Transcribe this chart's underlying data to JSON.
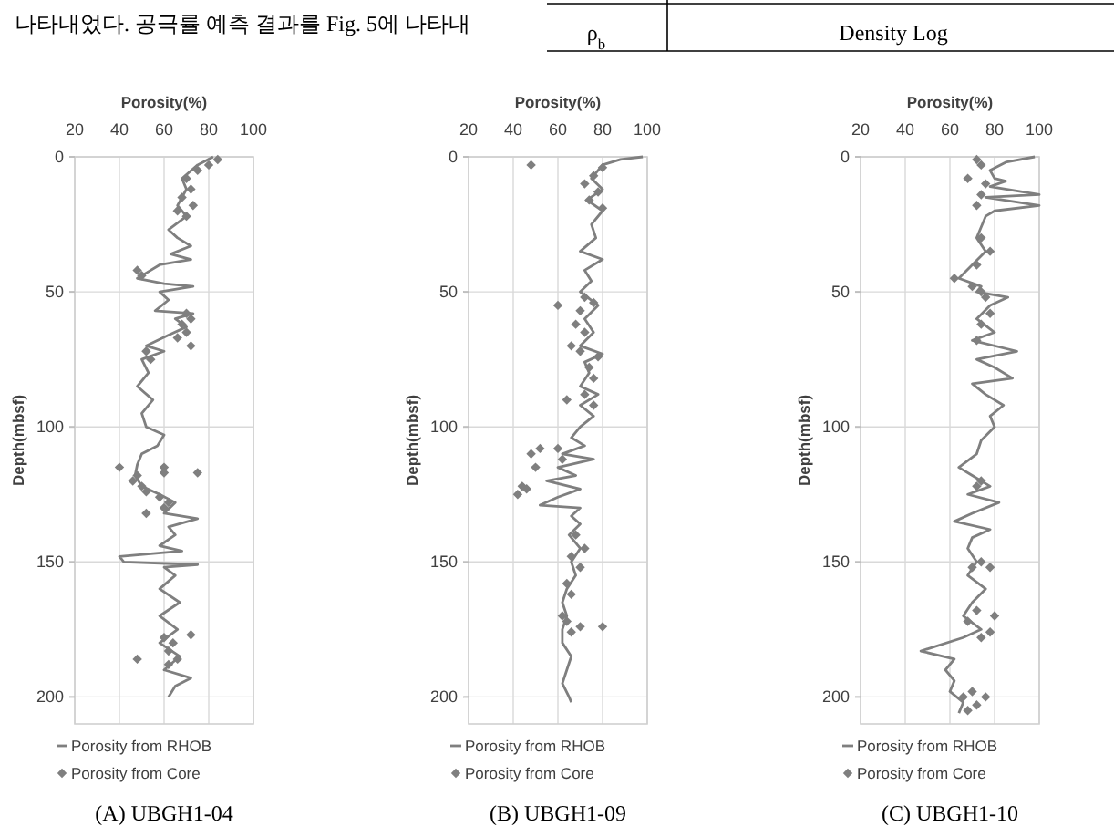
{
  "chart_data": [
    {
      "type": "line",
      "title": "(A)  UBGH1-04",
      "xlabel": "Porosity(%)",
      "ylabel": "Depth(mbsf)",
      "xlim": [
        20,
        100
      ],
      "xticks": [
        20,
        40,
        60,
        80,
        100
      ],
      "ylim": [
        210,
        0
      ],
      "yticks": [
        0,
        50,
        100,
        150,
        200
      ],
      "grid": true,
      "legend": "bottom",
      "annotations": [
        "나타내었다. 공극률 예측 결과를 Fig. 5에 나타내",
        "ρ$_{b}$",
        "Density  Log"
      ],
      "series": [
        {
          "name": "Porosity from RHOB",
          "type": "line",
          "color": "#7f7f7f",
          "marker": "none",
          "x": [
            82,
            75,
            68,
            70,
            66,
            70,
            62,
            66,
            72,
            63,
            72,
            58,
            52,
            48,
            60,
            73,
            58,
            62,
            56,
            73,
            65,
            70,
            62,
            52,
            60,
            50,
            53,
            48,
            55,
            50,
            52,
            60,
            57,
            50,
            48,
            47,
            50,
            58,
            65,
            60,
            75,
            62,
            65,
            58,
            68,
            40,
            42,
            75,
            60,
            65,
            58,
            67,
            58,
            66,
            58,
            67,
            60,
            72,
            65,
            62
          ],
          "values": [
            0,
            3,
            8,
            12,
            18,
            22,
            27,
            30,
            33,
            36,
            38,
            40,
            43,
            45,
            47,
            48,
            50,
            53,
            57,
            58,
            60,
            63,
            66,
            70,
            72,
            75,
            80,
            85,
            90,
            95,
            100,
            103,
            107,
            110,
            114,
            118,
            122,
            125,
            128,
            132,
            134,
            137,
            140,
            144,
            146,
            148,
            150,
            151,
            152,
            155,
            160,
            165,
            170,
            175,
            180,
            185,
            190,
            193,
            196,
            200
          ]
        },
        {
          "name": "Porosity from Core",
          "type": "scatter",
          "color": "#7f7f7f",
          "marker": "diamond",
          "x": [
            84,
            80,
            75,
            70,
            72,
            68,
            73,
            66,
            70,
            50,
            48,
            70,
            72,
            68,
            70,
            66,
            72,
            52,
            54,
            40,
            60,
            60,
            75,
            48,
            46,
            50,
            52,
            58,
            62,
            60,
            52,
            72,
            60,
            64,
            62,
            66,
            48,
            62
          ],
          "values": [
            1,
            3,
            5,
            8,
            12,
            15,
            18,
            20,
            22,
            44,
            42,
            58,
            60,
            62,
            65,
            67,
            70,
            72,
            75,
            115,
            115,
            117,
            117,
            118,
            120,
            122,
            124,
            126,
            128,
            130,
            132,
            177,
            178,
            180,
            183,
            186,
            186,
            188
          ]
        }
      ]
    },
    {
      "type": "line",
      "title": "(B)  UBGH1-09",
      "xlabel": "Porosity(%)",
      "ylabel": "Depth(mbsf)",
      "xlim": [
        20,
        100
      ],
      "xticks": [
        20,
        40,
        60,
        80,
        100
      ],
      "ylim": [
        210,
        0
      ],
      "yticks": [
        0,
        50,
        100,
        150,
        200
      ],
      "grid": true,
      "legend": "bottom",
      "series": [
        {
          "name": "Porosity from RHOB",
          "type": "line",
          "color": "#7f7f7f",
          "marker": "none",
          "x": [
            98,
            88,
            80,
            75,
            80,
            73,
            80,
            75,
            77,
            70,
            80,
            72,
            75,
            70,
            78,
            72,
            76,
            70,
            80,
            72,
            74,
            70,
            78,
            70,
            76,
            70,
            66,
            72,
            62,
            76,
            60,
            68,
            55,
            70,
            60,
            52,
            70,
            66,
            70,
            65,
            70,
            66,
            68,
            64,
            62,
            64,
            62,
            62,
            66,
            64,
            62,
            65,
            66
          ],
          "values": [
            0,
            1,
            3,
            8,
            12,
            16,
            20,
            25,
            30,
            35,
            38,
            42,
            46,
            50,
            55,
            60,
            65,
            70,
            73,
            76,
            80,
            85,
            88,
            92,
            96,
            100,
            104,
            107,
            110,
            112,
            115,
            118,
            120,
            123,
            126,
            129,
            130,
            133,
            136,
            140,
            145,
            150,
            155,
            160,
            165,
            170,
            175,
            180,
            185,
            190,
            195,
            200,
            202
          ]
        },
        {
          "name": "Porosity from Core",
          "type": "scatter",
          "color": "#7f7f7f",
          "marker": "diamond",
          "x": [
            48,
            80,
            76,
            72,
            78,
            74,
            80,
            72,
            76,
            60,
            70,
            68,
            72,
            66,
            70,
            78,
            74,
            76,
            72,
            64,
            76,
            52,
            48,
            60,
            62,
            50,
            44,
            42,
            46,
            68,
            72,
            66,
            70,
            64,
            66,
            62,
            64,
            70,
            80,
            66
          ],
          "values": [
            3,
            4,
            7,
            10,
            13,
            16,
            19,
            52,
            54,
            55,
            57,
            62,
            65,
            70,
            72,
            74,
            78,
            82,
            88,
            90,
            92,
            108,
            110,
            108,
            112,
            115,
            122,
            125,
            123,
            140,
            145,
            148,
            152,
            158,
            162,
            170,
            172,
            174,
            174,
            176
          ]
        }
      ]
    },
    {
      "type": "line",
      "title": "(C)  UBGH1-10",
      "xlabel": "Porosity(%)",
      "ylabel": "Depth(mbsf)",
      "xlim": [
        20,
        100
      ],
      "xticks": [
        20,
        40,
        60,
        80,
        100
      ],
      "ylim": [
        210,
        0
      ],
      "yticks": [
        0,
        50,
        100,
        150,
        200
      ],
      "grid": true,
      "legend": "bottom",
      "series": [
        {
          "name": "Porosity from RHOB",
          "type": "line",
          "color": "#7f7f7f",
          "marker": "none",
          "x": [
            98,
            85,
            78,
            80,
            85,
            78,
            100,
            76,
            100,
            80,
            76,
            74,
            72,
            76,
            70,
            64,
            74,
            72,
            86,
            78,
            72,
            80,
            70,
            90,
            72,
            80,
            88,
            70,
            76,
            84,
            78,
            80,
            74,
            72,
            64,
            70,
            78,
            68,
            82,
            70,
            62,
            78,
            70,
            68,
            72,
            68,
            76,
            70,
            66,
            74,
            66,
            47,
            62,
            58,
            62,
            60,
            66,
            64
          ],
          "values": [
            0,
            2,
            5,
            8,
            9,
            11,
            14,
            15,
            18,
            20,
            22,
            26,
            30,
            35,
            40,
            45,
            48,
            50,
            52,
            55,
            60,
            65,
            68,
            72,
            75,
            78,
            82,
            84,
            88,
            92,
            96,
            100,
            105,
            110,
            115,
            118,
            122,
            125,
            128,
            132,
            135,
            138,
            141,
            145,
            150,
            155,
            160,
            165,
            170,
            175,
            178,
            183,
            186,
            190,
            194,
            198,
            202,
            206
          ]
        },
        {
          "name": "Porosity from Core",
          "type": "scatter",
          "color": "#7f7f7f",
          "marker": "diamond",
          "x": [
            72,
            74,
            68,
            76,
            74,
            72,
            74,
            78,
            72,
            62,
            70,
            74,
            76,
            78,
            74,
            72,
            74,
            72,
            74,
            78,
            70,
            72,
            80,
            68,
            78,
            74,
            70,
            76,
            66,
            72,
            68
          ],
          "values": [
            1,
            3,
            8,
            10,
            14,
            18,
            30,
            35,
            40,
            45,
            48,
            50,
            52,
            58,
            62,
            68,
            120,
            122,
            150,
            152,
            152,
            168,
            170,
            172,
            176,
            178,
            198,
            200,
            200,
            203,
            205
          ]
        }
      ]
    }
  ]
}
